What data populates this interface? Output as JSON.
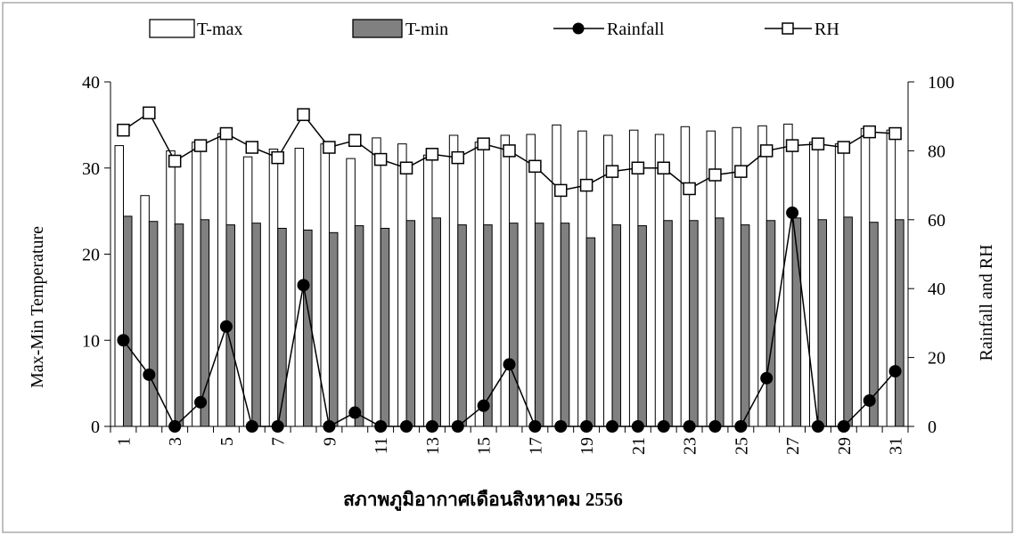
{
  "chart_data": {
    "type": "bar+line",
    "x_categories": [
      "1",
      "2",
      "3",
      "4",
      "5",
      "6",
      "7",
      "8",
      "9",
      "10",
      "11",
      "12",
      "13",
      "14",
      "15",
      "16",
      "17",
      "18",
      "19",
      "20",
      "21",
      "22",
      "23",
      "24",
      "25",
      "26",
      "27",
      "28",
      "29",
      "30",
      "31"
    ],
    "x_tick_labels": [
      "1",
      "3",
      "5",
      "7",
      "9",
      "11",
      "13",
      "15",
      "17",
      "19",
      "21",
      "23",
      "25",
      "27",
      "29",
      "31"
    ],
    "xlabel": "สภาพภูมิอากาศเดือนสิงหาคม 2556",
    "ylabel_left": "Max-Min Temperature",
    "ylabel_right": "Rainfall and RH",
    "ylim_left": [
      0,
      40
    ],
    "ylim_right": [
      0,
      100
    ],
    "yticks_left": [
      0,
      10,
      20,
      30,
      40
    ],
    "yticks_right": [
      0,
      20,
      40,
      60,
      80,
      100
    ],
    "legend_position": "top",
    "series": [
      {
        "name": "T-max",
        "kind": "bar",
        "axis": "left",
        "color": "#ffffff",
        "values": [
          32.6,
          26.8,
          32.0,
          33.0,
          34.0,
          31.3,
          32.2,
          32.3,
          32.8,
          31.1,
          33.5,
          32.8,
          31.5,
          33.8,
          33.0,
          33.8,
          33.9,
          35.0,
          34.3,
          33.8,
          34.4,
          33.9,
          34.8,
          34.3,
          34.7,
          34.9,
          35.1,
          33.0,
          32.8,
          34.6,
          34.4
        ]
      },
      {
        "name": "T-min",
        "kind": "bar",
        "axis": "left",
        "color": "#808080",
        "values": [
          24.4,
          23.8,
          23.5,
          24.0,
          23.4,
          23.6,
          23.0,
          22.8,
          22.5,
          23.3,
          23.0,
          23.9,
          24.2,
          23.4,
          23.4,
          23.6,
          23.6,
          23.6,
          21.9,
          23.4,
          23.3,
          23.9,
          23.9,
          24.2,
          23.4,
          23.9,
          24.2,
          24.0,
          24.3,
          23.7,
          24.0
        ]
      },
      {
        "name": "Rainfall",
        "kind": "line",
        "marker": "circle-filled",
        "axis": "right",
        "color": "#000000",
        "values": [
          25,
          15,
          0,
          7,
          29,
          0,
          0,
          41,
          0,
          4,
          0,
          0,
          0,
          0,
          6,
          18,
          0,
          0,
          0,
          0,
          0,
          0,
          0,
          0,
          0,
          14,
          62,
          0,
          0,
          7.5,
          16
        ]
      },
      {
        "name": "RH",
        "kind": "line",
        "marker": "square-open",
        "axis": "right",
        "color": "#000000",
        "values": [
          86,
          91,
          77,
          81.5,
          85,
          81,
          78,
          90.5,
          81,
          83,
          77.5,
          75,
          79,
          78,
          82,
          80,
          75.5,
          68.5,
          70,
          74,
          75,
          75,
          69,
          73,
          74,
          80,
          81.5,
          82,
          81,
          85.5,
          85
        ]
      }
    ]
  }
}
